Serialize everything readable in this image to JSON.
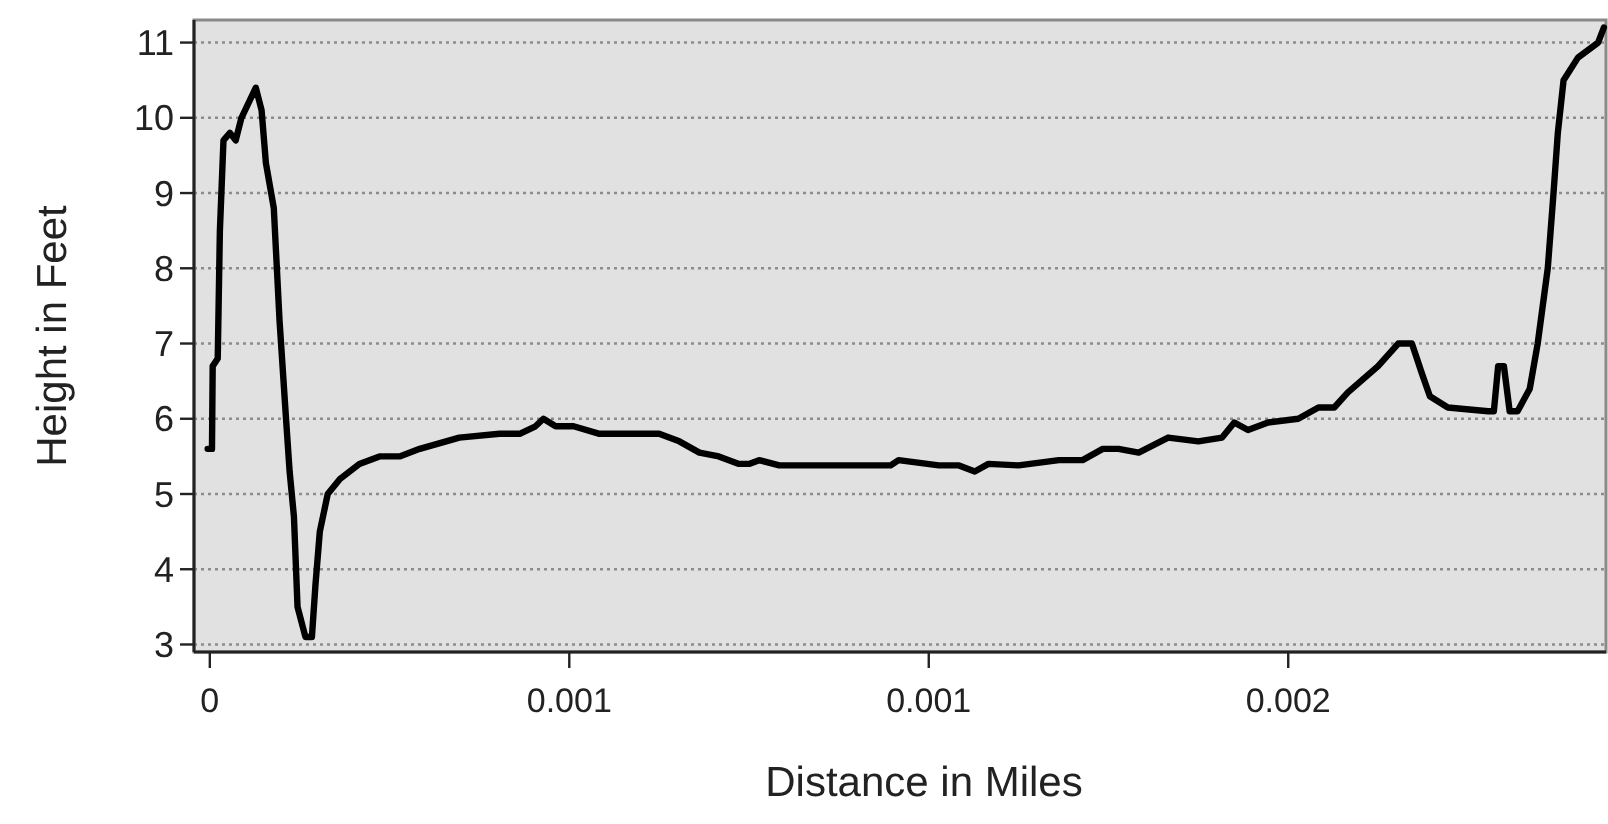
{
  "chart_data": {
    "type": "line",
    "xlabel": "Distance in Miles",
    "ylabel": "Height in Feet",
    "xlim": [
      -2.2e-05,
      0.001942
    ],
    "ylim": [
      2.9,
      11.3
    ],
    "xticks": [
      {
        "value": 0,
        "label": "0"
      },
      {
        "value": 0.0005,
        "label": "0.001"
      },
      {
        "value": 0.001,
        "label": "0.001"
      },
      {
        "value": 0.0015,
        "label": "0.002"
      }
    ],
    "yticks": [
      3,
      4,
      5,
      6,
      7,
      8,
      9,
      10,
      11
    ],
    "grid": "y",
    "marker": "none",
    "line_style": "solid",
    "series": [
      {
        "color": "#000000",
        "x": [
          -3e-06,
          3e-06,
          4e-06,
          1.1e-05,
          1.4e-05,
          1.9e-05,
          2.8e-05,
          3.6e-05,
          4.4e-05,
          6.4e-05,
          7.2e-05,
          7.8e-05,
          8.9e-05,
          9.7e-05,
          0.000106,
          0.000111,
          0.000117,
          0.000122,
          0.000133,
          0.000142,
          0.000147,
          0.000153,
          0.000164,
          0.000181,
          0.000208,
          0.000236,
          0.000264,
          0.000292,
          0.000347,
          0.000403,
          0.000431,
          0.000453,
          0.000464,
          0.000481,
          0.000506,
          0.000542,
          0.000597,
          0.000625,
          0.000653,
          0.000681,
          0.000708,
          0.000736,
          0.00075,
          0.000764,
          0.000792,
          0.000947,
          0.000958,
          0.001014,
          0.001042,
          0.001064,
          0.001083,
          0.001125,
          0.001181,
          0.001214,
          0.001242,
          0.001264,
          0.001292,
          0.001333,
          0.001375,
          0.001408,
          0.001425,
          0.001444,
          0.001472,
          0.001514,
          0.001542,
          0.001564,
          0.001583,
          0.001625,
          0.001653,
          0.001672,
          0.001686,
          0.001697,
          0.001722,
          0.001778,
          0.001786,
          0.001792,
          0.0018,
          0.001808,
          0.001819,
          0.001836,
          0.001847,
          0.001861,
          0.001869,
          0.001875,
          0.001883,
          0.001903,
          0.001931,
          0.001939
        ],
        "values": [
          5.6,
          5.6,
          6.7,
          6.8,
          8.5,
          9.7,
          9.8,
          9.7,
          10.0,
          10.4,
          10.1,
          9.4,
          8.8,
          7.3,
          6.0,
          5.3,
          4.7,
          3.5,
          3.1,
          3.1,
          3.8,
          4.5,
          5.0,
          5.2,
          5.4,
          5.5,
          5.5,
          5.6,
          5.75,
          5.8,
          5.8,
          5.9,
          6.0,
          5.9,
          5.9,
          5.8,
          5.8,
          5.8,
          5.7,
          5.55,
          5.5,
          5.4,
          5.4,
          5.45,
          5.38,
          5.38,
          5.45,
          5.38,
          5.38,
          5.3,
          5.4,
          5.38,
          5.45,
          5.45,
          5.6,
          5.6,
          5.55,
          5.75,
          5.7,
          5.75,
          5.95,
          5.85,
          5.95,
          6.0,
          6.15,
          6.15,
          6.35,
          6.7,
          7.0,
          7.0,
          6.6,
          6.3,
          6.15,
          6.1,
          6.1,
          6.7,
          6.7,
          6.1,
          6.1,
          6.4,
          7.0,
          8.0,
          9.0,
          9.8,
          10.5,
          10.8,
          11.0,
          11.2
        ]
      }
    ]
  }
}
